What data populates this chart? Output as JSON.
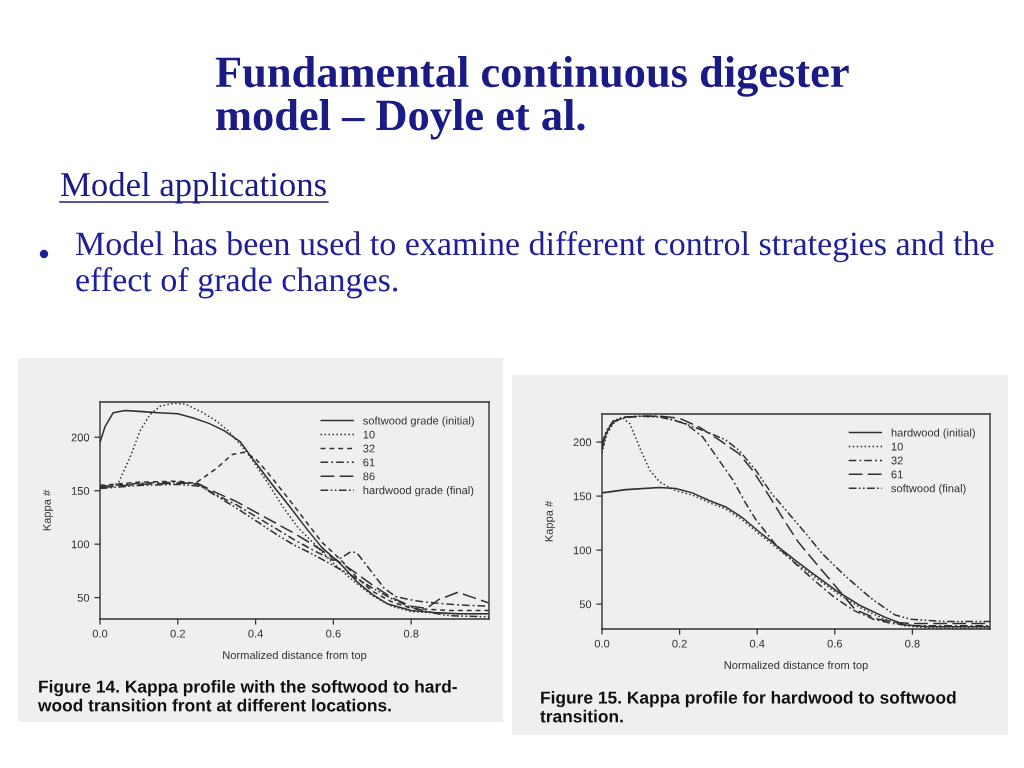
{
  "chart_data": [
    {
      "type": "other",
      "title": "Fundamental continuous digester\nmodel – Doyle et al.",
      "subtitle": "Model applications",
      "annotations": [
        "Model has been used to examine different control strategies and the\neffect of grade changes."
      ]
    },
    {
      "type": "line",
      "xlabel": "Normalized distance from top",
      "ylabel": "Kappa #",
      "xlim": [
        0,
        1.0
      ],
      "ylim": [
        30,
        233
      ],
      "xticks": [
        {
          "value": 0,
          "label": "0.0"
        },
        0.2,
        0.4,
        0.6,
        0.8
      ],
      "yticks": [
        50,
        100,
        150,
        200
      ],
      "legend": "top right",
      "marker": "none",
      "annotations": [
        "Figure 14. Kappa profile with the softwood to hard-\nwood transition front at different locations."
      ],
      "series": [
        {
          "name": "softwood grade (initial)",
          "color": "#303030",
          "line_style": "solid",
          "x": [
            0,
            0.013,
            0.034,
            0.064,
            0.11,
            0.15,
            0.2,
            0.24,
            0.28,
            0.32,
            0.36,
            0.39,
            0.44,
            0.49,
            0.53,
            0.57,
            0.62,
            0.66,
            0.7,
            0.74,
            0.8,
            0.86,
            0.92,
            1.0
          ],
          "values": [
            195,
            210,
            223,
            225,
            224,
            223,
            222,
            218,
            213,
            206,
            196,
            181,
            157,
            134,
            115,
            97,
            81,
            65,
            53,
            44,
            38,
            36,
            35,
            35
          ]
        },
        {
          "name": "10",
          "color": "#303030",
          "line_style": "dotted",
          "x": [
            0,
            0.03,
            0.047,
            0.077,
            0.103,
            0.128,
            0.154,
            0.19,
            0.22,
            0.26,
            0.3,
            0.33,
            0.38,
            0.43,
            0.47,
            0.51,
            0.56,
            0.6,
            0.65,
            0.7,
            0.75,
            0.8,
            0.9,
            1.0
          ],
          "values": [
            153,
            155,
            157,
            181,
            206,
            221,
            229,
            232,
            231,
            224,
            215,
            206,
            185,
            158,
            135,
            115,
            97,
            82,
            66,
            52,
            42,
            37,
            35,
            35
          ]
        },
        {
          "name": "32",
          "color": "#303030",
          "line_style": "dashed",
          "x": [
            0,
            0.1,
            0.2,
            0.245,
            0.3,
            0.34,
            0.37,
            0.4,
            0.44,
            0.49,
            0.53,
            0.57,
            0.62,
            0.66,
            0.7,
            0.75,
            0.8,
            0.9,
            1.0
          ],
          "values": [
            155,
            158,
            159,
            157,
            171,
            184,
            186,
            180,
            163,
            140,
            121,
            102,
            85,
            69,
            56,
            46,
            40,
            38,
            38
          ]
        },
        {
          "name": "61",
          "color": "#303030",
          "line_style": "dashdot",
          "x": [
            0,
            0.1,
            0.2,
            0.25,
            0.3,
            0.35,
            0.4,
            0.45,
            0.5,
            0.55,
            0.6,
            0.62,
            0.645,
            0.66,
            0.69,
            0.73,
            0.76,
            0.81,
            0.86,
            0.93,
            1.0
          ],
          "values": [
            154,
            157,
            158,
            156,
            146,
            137,
            126,
            115,
            104,
            94,
            85,
            87,
            93,
            92,
            78,
            59,
            51,
            47,
            45,
            43,
            42
          ]
        },
        {
          "name": "86",
          "color": "#303030",
          "line_style": "longdash",
          "x": [
            0,
            0.1,
            0.2,
            0.25,
            0.3,
            0.35,
            0.4,
            0.45,
            0.5,
            0.55,
            0.6,
            0.65,
            0.7,
            0.75,
            0.8,
            0.84,
            0.87,
            0.92,
            0.96,
            1.0
          ],
          "values": [
            153,
            156,
            157,
            157,
            148,
            140,
            130,
            120,
            110,
            99,
            87,
            75,
            62,
            50,
            42,
            40,
            48,
            55,
            50,
            45
          ]
        },
        {
          "name": "hardwood grade (final)",
          "color": "#303030",
          "line_style": "dashdotdot",
          "x": [
            0,
            0.1,
            0.2,
            0.26,
            0.3,
            0.35,
            0.4,
            0.45,
            0.5,
            0.55,
            0.6,
            0.65,
            0.7,
            0.75,
            0.8,
            0.85,
            0.9,
            1.0
          ],
          "values": [
            152,
            155,
            156,
            154,
            145,
            134,
            122,
            110,
            99,
            90,
            80,
            70,
            59,
            49,
            41,
            36,
            33,
            32
          ]
        }
      ]
    },
    {
      "type": "line",
      "xlabel": "Normalized distance from top",
      "ylabel": "Kappa #",
      "xlim": [
        0,
        1.0
      ],
      "ylim": [
        27,
        226
      ],
      "xticks": [
        {
          "value": 0,
          "label": "0.0"
        },
        0.2,
        0.4,
        0.6,
        0.8
      ],
      "yticks": [
        50,
        100,
        150,
        200
      ],
      "legend": "top right",
      "marker": "none",
      "annotations": [
        "Figure 15. Kappa profile for hardwood to softwood\ntransition."
      ],
      "series": [
        {
          "name": "hardwood (initial)",
          "color": "#303030",
          "line_style": "solid",
          "x": [
            0,
            0.062,
            0.148,
            0.19,
            0.233,
            0.276,
            0.319,
            0.362,
            0.405,
            0.447,
            0.5,
            0.541,
            0.61,
            0.669,
            0.729,
            0.78,
            0.84,
            0.9,
            1.0
          ],
          "values": [
            153,
            156,
            158,
            157,
            153,
            146,
            140,
            130,
            117,
            105,
            90,
            79,
            61,
            48,
            38,
            31,
            29,
            29,
            29
          ]
        },
        {
          "name": "10",
          "color": "#303030",
          "line_style": "dotted",
          "x": [
            0,
            0.012,
            0.029,
            0.05,
            0.072,
            0.097,
            0.123,
            0.149,
            0.174,
            0.19,
            0.233,
            0.276,
            0.319,
            0.362,
            0.405,
            0.447,
            0.5,
            0.541,
            0.61,
            0.669,
            0.729,
            0.78,
            0.84,
            0.9,
            1.0
          ],
          "values": [
            190,
            207,
            217,
            223,
            217,
            195,
            174,
            163,
            158,
            155,
            151,
            144,
            138,
            128,
            115,
            103,
            88,
            77,
            59,
            46,
            36,
            30,
            28,
            28,
            28
          ]
        },
        {
          "name": "32",
          "color": "#303030",
          "line_style": "dashdot",
          "x": [
            0,
            0.012,
            0.03,
            0.06,
            0.1,
            0.15,
            0.216,
            0.259,
            0.302,
            0.337,
            0.371,
            0.397,
            0.43,
            0.45,
            0.5,
            0.55,
            0.6,
            0.65,
            0.7,
            0.75,
            0.8,
            0.9,
            1.0
          ],
          "values": [
            193,
            209,
            219,
            223,
            224,
            224,
            217,
            205,
            183,
            165,
            143,
            128,
            113,
            104,
            87,
            71,
            56,
            44,
            36,
            32,
            30,
            30,
            30
          ]
        },
        {
          "name": "61",
          "color": "#303030",
          "line_style": "longdash",
          "x": [
            0,
            0.012,
            0.03,
            0.06,
            0.1,
            0.15,
            0.2,
            0.25,
            0.302,
            0.354,
            0.388,
            0.431,
            0.474,
            0.507,
            0.558,
            0.601,
            0.652,
            0.712,
            0.76,
            0.8,
            0.9,
            1.0
          ],
          "values": [
            196,
            210,
            219,
            223,
            224,
            224,
            222,
            214,
            202,
            189,
            174,
            150,
            125,
            107,
            85,
            67,
            45,
            36,
            33,
            32,
            32,
            32
          ]
        },
        {
          "name": "softwood (final)",
          "color": "#303030",
          "line_style": "dashdotdot",
          "x": [
            0,
            0.012,
            0.03,
            0.06,
            0.1,
            0.15,
            0.19,
            0.259,
            0.319,
            0.354,
            0.396,
            0.438,
            0.481,
            0.524,
            0.567,
            0.627,
            0.695,
            0.755,
            0.797,
            0.883,
            1.0
          ],
          "values": [
            199,
            211,
            220,
            223,
            224,
            223,
            220,
            211,
            202,
            192,
            174,
            152,
            134,
            116,
            97,
            76,
            55,
            40,
            36,
            34,
            34
          ]
        }
      ]
    }
  ]
}
